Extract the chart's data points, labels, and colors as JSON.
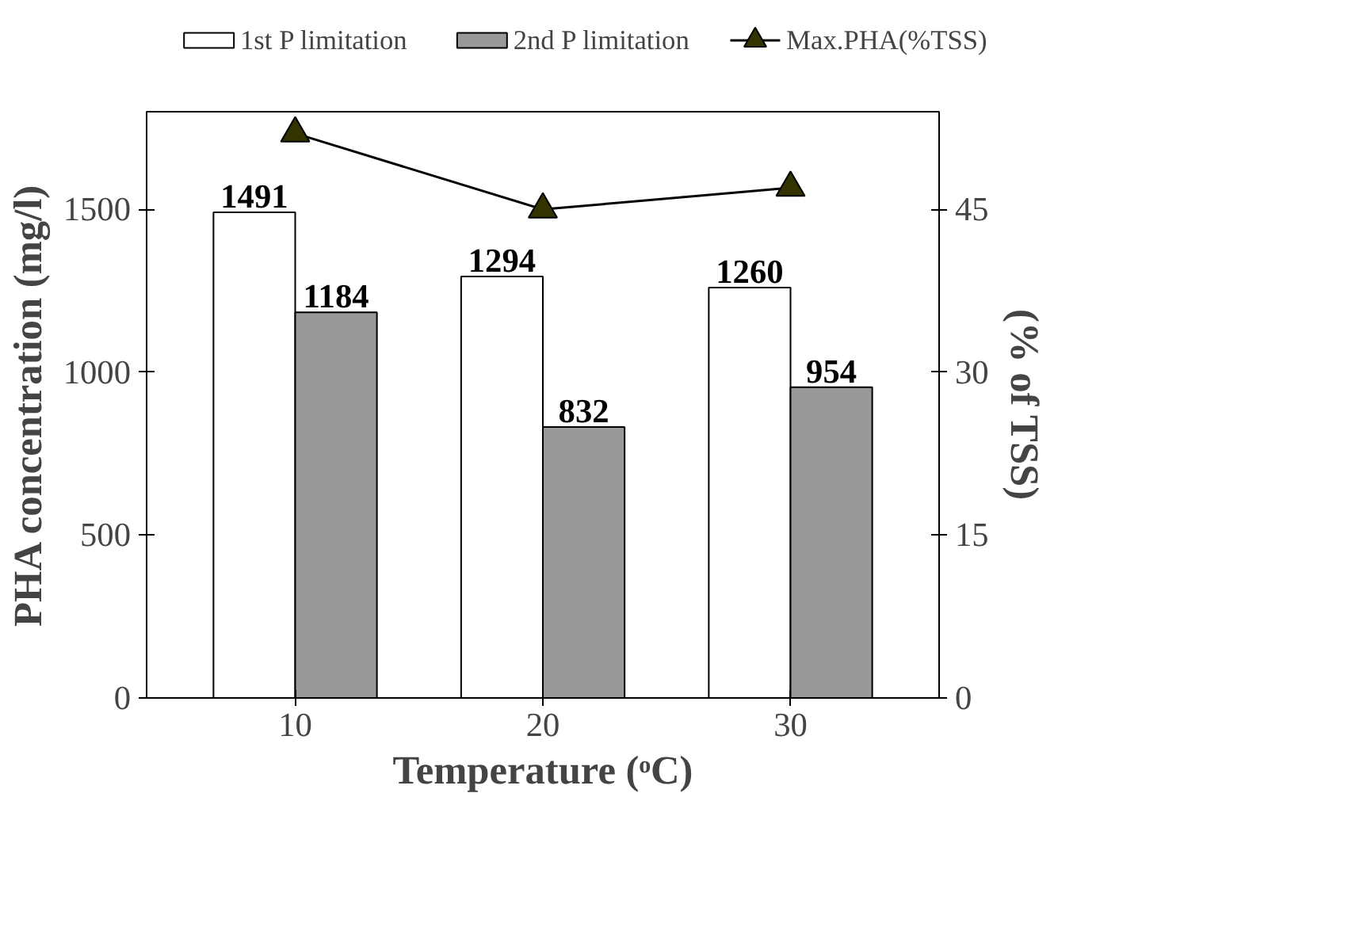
{
  "chart_data": {
    "type": "bar",
    "xlabel": "Temperature (ᵒC)",
    "ylabel": "PHA concentration (mg/l)",
    "y2label": "(% of TSS)",
    "categories": [
      "10",
      "20",
      "30"
    ],
    "series": [
      {
        "name": "1st P limitation",
        "color": "#ffffff",
        "values": [
          1491,
          1294,
          1260
        ],
        "value_labels": [
          "1491",
          "1294",
          "1260"
        ]
      },
      {
        "name": "2nd P limitation",
        "color": "#999999",
        "values": [
          1184,
          832,
          954
        ],
        "value_labels": [
          "1184",
          "832",
          "954"
        ]
      },
      {
        "name": "Max.PHA(%TSS)",
        "type": "line",
        "axis": "y2",
        "color": "#333300",
        "marker": "triangle",
        "values": [
          52,
          45,
          47
        ]
      }
    ],
    "ylim": [
      0,
      1800
    ],
    "yticks": [
      0,
      500,
      1000,
      1500
    ],
    "y2lim": [
      0,
      54
    ],
    "y2ticks": [
      0,
      15,
      30,
      45
    ],
    "legend": "top",
    "grid": false
  }
}
